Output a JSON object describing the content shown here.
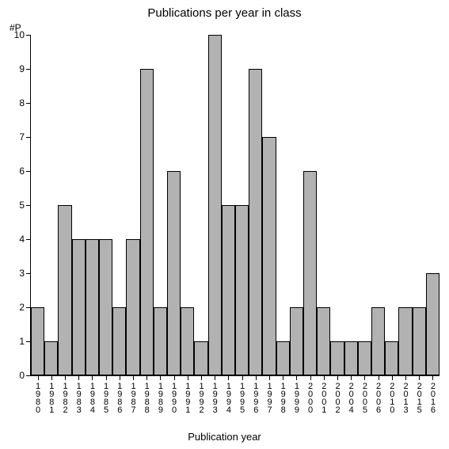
{
  "chart": {
    "type": "bar",
    "title": "Publications per year in class",
    "title_fontsize": 15,
    "x_axis_label": "Publication year",
    "y_axis_label": "#P",
    "label_fontsize": 13,
    "tick_fontsize": 12,
    "background_color": "#ffffff",
    "axis_color": "#000000",
    "bar_fill_color": "#b2b2b2",
    "bar_border_color": "#000000",
    "ylim": [
      0,
      10
    ],
    "ytick_step": 1,
    "bar_width_ratio": 1.0,
    "categories": [
      "1980",
      "1981",
      "1982",
      "1983",
      "1984",
      "1985",
      "1986",
      "1987",
      "1988",
      "1989",
      "1990",
      "1991",
      "1992",
      "1993",
      "1994",
      "1995",
      "1996",
      "1997",
      "1998",
      "1999",
      "2000",
      "2001",
      "2002",
      "2004",
      "2005",
      "2006",
      "2010",
      "2013",
      "2015",
      "2016"
    ],
    "values": [
      2,
      1,
      5,
      4,
      4,
      4,
      2,
      4,
      9,
      2,
      6,
      2,
      1,
      10,
      5,
      5,
      9,
      7,
      1,
      2,
      6,
      2,
      1,
      1,
      1,
      2,
      1,
      2,
      2,
      3
    ]
  }
}
